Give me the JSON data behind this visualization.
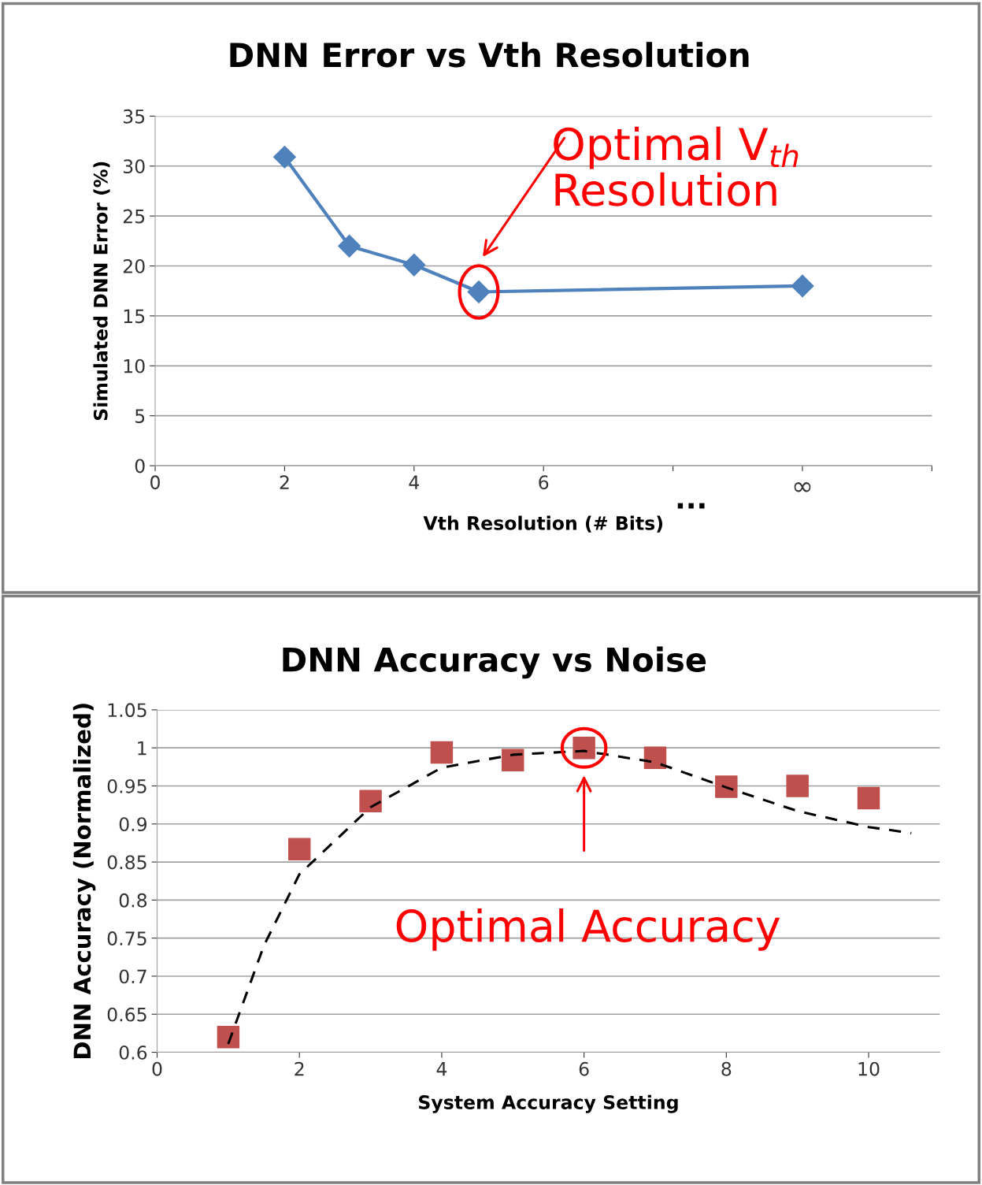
{
  "chart_data": [
    {
      "type": "line",
      "title": "DNN Error vs Vth Resolution",
      "xlabel": "Vth Resolution (# Bits)",
      "ylabel": "Simulated DNN Error (%)",
      "x": [
        2,
        3,
        4,
        5,
        10
      ],
      "series": [
        {
          "color": "#4f81bd",
          "values": [
            30.9,
            22.0,
            20.1,
            17.4,
            18.0
          ],
          "marker": "diamond",
          "line_style": "solid"
        }
      ],
      "xlim": [
        0,
        12
      ],
      "xticks": [
        0,
        2,
        4,
        6,
        {
          "value": 8,
          "label": null
        },
        {
          "value": 10,
          "label": "∞"
        },
        {
          "value": 12,
          "label": null
        }
      ],
      "ylim": [
        0,
        35
      ],
      "yticks": [
        0,
        5,
        10,
        15,
        20,
        25,
        30,
        35
      ],
      "grid": "y",
      "legend": false,
      "annotations": [
        "Optimal V$_{th}$\nResolution",
        "..."
      ]
    },
    {
      "type": "scatter",
      "title": "DNN Accuracy vs Noise",
      "xlabel": "System Accuracy Setting",
      "ylabel": "DNN Accuracy (Normalized)",
      "x": [
        1,
        2,
        3,
        4,
        5,
        6,
        7,
        8,
        9,
        10
      ],
      "series": [
        {
          "color": "#c0504d",
          "values": [
            0.62,
            0.867,
            0.93,
            0.994,
            0.984,
            1.0,
            0.987,
            0.949,
            0.95,
            0.934
          ],
          "marker": "square"
        },
        {
          "type": "line",
          "color": "#000000",
          "x": [
            1,
            1.5,
            2,
            3,
            4,
            5,
            6,
            7,
            8,
            9,
            10,
            10.6
          ],
          "values": [
            0.611,
            0.74,
            0.834,
            0.922,
            0.974,
            0.991,
            0.996,
            0.981,
            0.948,
            0.917,
            0.896,
            0.888
          ],
          "marker": "none",
          "line_style": "dashed"
        }
      ],
      "xlim": [
        0,
        11
      ],
      "xticks": [
        0,
        2,
        4,
        6,
        8,
        10
      ],
      "ylim": [
        0.6,
        1.05
      ],
      "yticks": [
        0.6,
        0.65,
        0.7,
        0.75,
        0.8,
        0.85,
        0.9,
        0.95,
        1,
        1.05
      ],
      "grid": "y",
      "legend": false,
      "annotations": [
        "Optimal Accuracy"
      ]
    }
  ]
}
